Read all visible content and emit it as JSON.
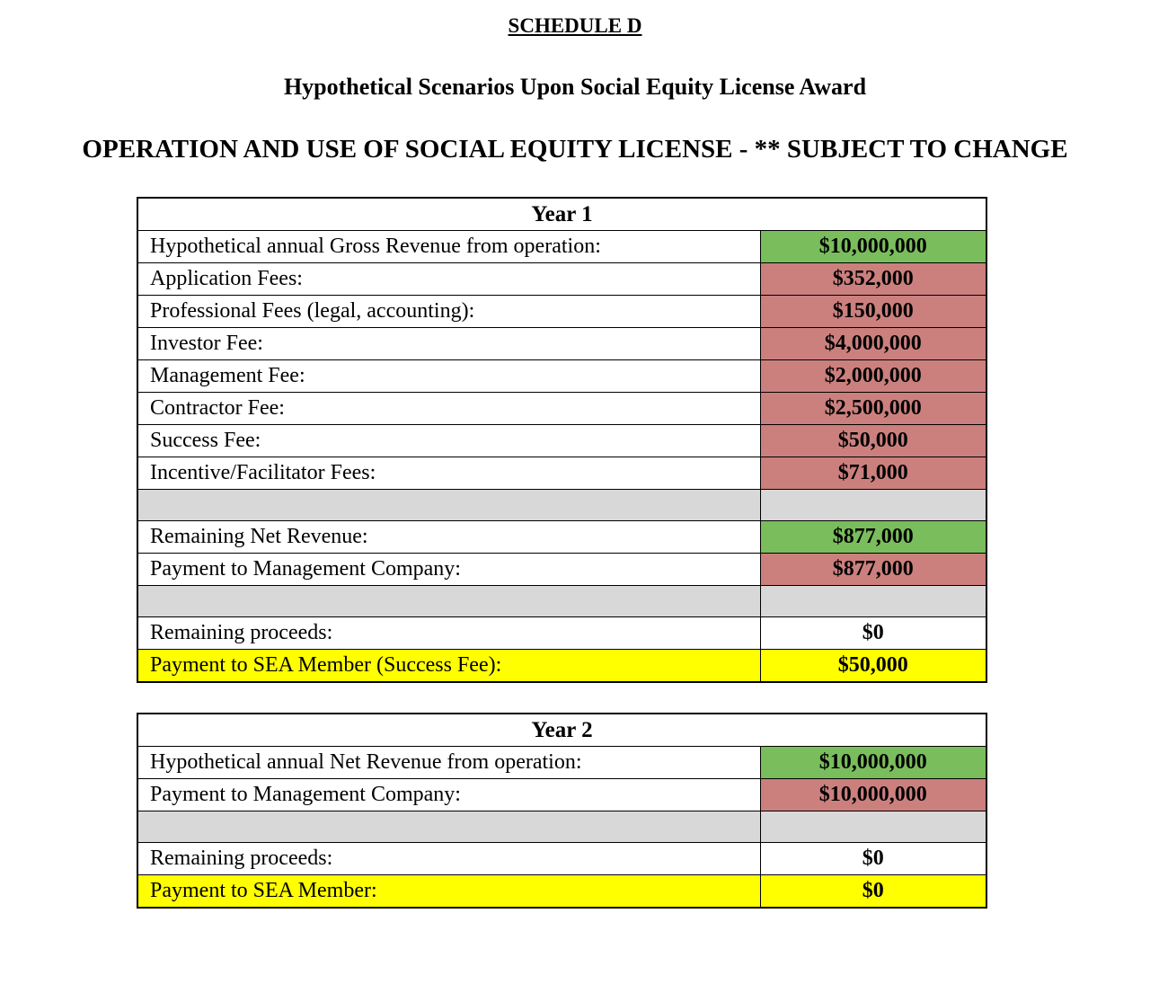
{
  "document": {
    "title": "SCHEDULE D",
    "subtitle": "Hypothetical Scenarios Upon Social Equity License Award",
    "heading": "OPERATION AND USE OF SOCIAL EQUITY LICENSE - ** SUBJECT TO CHANGE"
  },
  "colors": {
    "green": "#7ABD5C",
    "red": "#CB807E",
    "yellow": "#FFFF00",
    "gray": "#D8D8D8",
    "white": "#FFFFFF"
  },
  "tables": [
    {
      "header": "Year 1",
      "rows": [
        {
          "label": "Hypothetical annual Gross Revenue from operation:",
          "value": "$10,000,000",
          "label_bg": "white",
          "value_bg": "green"
        },
        {
          "label": "Application Fees:",
          "value": "$352,000",
          "label_bg": "white",
          "value_bg": "red"
        },
        {
          "label": "Professional Fees (legal, accounting):",
          "value": "$150,000",
          "label_bg": "white",
          "value_bg": "red"
        },
        {
          "label": "Investor Fee:",
          "value": "$4,000,000",
          "label_bg": "white",
          "value_bg": "red"
        },
        {
          "label": "Management Fee:",
          "value": "$2,000,000",
          "label_bg": "white",
          "value_bg": "red"
        },
        {
          "label": "Contractor Fee:",
          "value": "$2,500,000",
          "label_bg": "white",
          "value_bg": "red"
        },
        {
          "label": "Success Fee:",
          "value": "$50,000",
          "label_bg": "white",
          "value_bg": "red"
        },
        {
          "label": "Incentive/Facilitator Fees:",
          "value": "$71,000",
          "label_bg": "white",
          "value_bg": "red"
        },
        {
          "spacer": true
        },
        {
          "label": "Remaining Net Revenue:",
          "value": "$877,000",
          "label_bg": "white",
          "value_bg": "green"
        },
        {
          "label": "Payment to Management Company:",
          "value": "$877,000",
          "label_bg": "white",
          "value_bg": "red"
        },
        {
          "spacer": true
        },
        {
          "label": "Remaining proceeds:",
          "value": "$0",
          "label_bg": "white",
          "value_bg": "white"
        },
        {
          "label": "Payment to SEA Member (Success Fee):",
          "value": "$50,000",
          "label_bg": "yellow",
          "value_bg": "yellow"
        }
      ]
    },
    {
      "header": "Year 2",
      "rows": [
        {
          "label": "Hypothetical annual Net Revenue from operation:",
          "value": "$10,000,000",
          "label_bg": "white",
          "value_bg": "green"
        },
        {
          "label": "Payment to Management Company:",
          "value": "$10,000,000",
          "label_bg": "white",
          "value_bg": "red"
        },
        {
          "spacer": true
        },
        {
          "label": "Remaining proceeds:",
          "value": "$0",
          "label_bg": "white",
          "value_bg": "white"
        },
        {
          "label": "Payment to SEA Member:",
          "value": "$0",
          "label_bg": "yellow",
          "value_bg": "yellow"
        }
      ]
    }
  ]
}
